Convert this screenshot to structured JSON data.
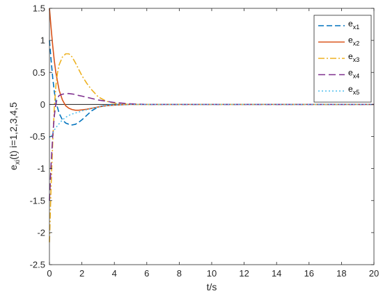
{
  "chart_data": {
    "type": "line",
    "title": "",
    "xlabel": "t/s",
    "ylabel": {
      "main": "e",
      "sub": "xi",
      "rest": "(t) i=1,2,3,4,5"
    },
    "xlim": [
      0,
      20
    ],
    "ylim": [
      -2.5,
      1.5
    ],
    "xticks": [
      0,
      2,
      4,
      6,
      8,
      10,
      12,
      14,
      16,
      18,
      20
    ],
    "yticks": [
      -2.5,
      -2,
      -1.5,
      -1,
      -0.5,
      0,
      0.5,
      1,
      1.5
    ],
    "grid": false,
    "legend_position": "top-right",
    "series": [
      {
        "name_main": "e",
        "name_sub": "x1",
        "color": "#0072BD",
        "dash": "8,4",
        "x": [
          0,
          0.1,
          0.2,
          0.3,
          0.4,
          0.6,
          0.8,
          1.0,
          1.2,
          1.4,
          1.6,
          1.8,
          2.0,
          2.3,
          2.6,
          3.0,
          3.5,
          4.0,
          5.0,
          6.0,
          20.0
        ],
        "y": [
          1.0,
          0.7,
          0.42,
          0.2,
          0.04,
          -0.14,
          -0.24,
          -0.29,
          -0.31,
          -0.32,
          -0.31,
          -0.28,
          -0.24,
          -0.17,
          -0.1,
          -0.04,
          -0.01,
          0.0,
          0.0,
          0.0,
          0.0
        ]
      },
      {
        "name_main": "e",
        "name_sub": "x2",
        "color": "#D95319",
        "dash": "",
        "x": [
          0,
          0.1,
          0.2,
          0.3,
          0.4,
          0.6,
          0.8,
          1.0,
          1.2,
          1.4,
          1.6,
          1.8,
          2.0,
          2.3,
          2.6,
          3.0,
          3.5,
          4.0,
          5.0,
          6.0,
          20.0
        ],
        "y": [
          1.5,
          1.2,
          0.92,
          0.68,
          0.49,
          0.22,
          0.07,
          -0.02,
          -0.06,
          -0.08,
          -0.09,
          -0.09,
          -0.085,
          -0.075,
          -0.06,
          -0.04,
          -0.02,
          -0.01,
          0.0,
          0.0,
          0.0
        ]
      },
      {
        "name_main": "e",
        "name_sub": "x3",
        "color": "#EDB120",
        "dash": "9,3,2,3",
        "x": [
          0,
          0.1,
          0.2,
          0.3,
          0.4,
          0.5,
          0.6,
          0.8,
          1.0,
          1.2,
          1.4,
          1.6,
          1.8,
          2.0,
          2.3,
          2.6,
          3.0,
          3.5,
          4.0,
          5.0,
          6.0,
          20.0
        ],
        "y": [
          -2.15,
          -1.3,
          -0.6,
          -0.05,
          0.3,
          0.5,
          0.62,
          0.74,
          0.79,
          0.79,
          0.74,
          0.65,
          0.55,
          0.45,
          0.33,
          0.23,
          0.12,
          0.05,
          0.02,
          0.0,
          0.0,
          0.0
        ]
      },
      {
        "name_main": "e",
        "name_sub": "x4",
        "color": "#7E2F8E",
        "dash": "10,5",
        "x": [
          0,
          0.1,
          0.2,
          0.3,
          0.4,
          0.5,
          0.6,
          0.8,
          1.0,
          1.2,
          1.5,
          1.8,
          2.0,
          2.5,
          3.0,
          3.5,
          4.0,
          4.5,
          5.0,
          6.0,
          20.0
        ],
        "y": [
          -1.5,
          -0.95,
          -0.5,
          -0.18,
          0.02,
          0.1,
          0.14,
          0.16,
          0.17,
          0.17,
          0.16,
          0.14,
          0.13,
          0.1,
          0.07,
          0.05,
          0.03,
          0.02,
          0.01,
          0.0,
          0.0
        ]
      },
      {
        "name_main": "e",
        "name_sub": "x5",
        "color": "#4DBEEE",
        "dash": "2,3",
        "x": [
          0,
          0.05,
          0.1,
          0.2,
          0.3,
          0.4,
          0.6,
          0.8,
          1.0,
          1.2,
          1.5,
          1.8,
          2.0,
          2.5,
          3.0,
          3.5,
          4.0,
          5.0,
          6.0,
          20.0
        ],
        "y": [
          -0.5,
          -0.52,
          -0.5,
          -0.45,
          -0.4,
          -0.36,
          -0.3,
          -0.24,
          -0.2,
          -0.17,
          -0.14,
          -0.12,
          -0.1,
          -0.07,
          -0.04,
          -0.02,
          -0.01,
          0.0,
          0.0,
          0.0
        ]
      }
    ]
  }
}
